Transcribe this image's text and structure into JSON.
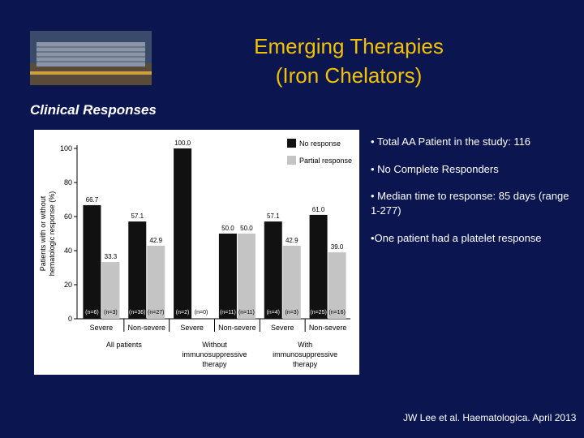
{
  "slide": {
    "title": [
      "Emerging Therapies",
      "(Iron Chelators)"
    ],
    "subtitle": "Clinical Responses",
    "bullets": [
      "• Total AA Patient in the study: 116",
      "• No Complete Responders",
      "• Median time to response: 85 days (range 1-277)",
      "•One patient had a platelet response"
    ],
    "citation": "JW Lee et al. Haematologica. April 2013"
  },
  "chart_data": {
    "type": "bar",
    "y_label": [
      "Patients with or without",
      "hematologic response (%)"
    ],
    "categories": [
      "Severe",
      "Non-severe",
      "Severe",
      "Non-severe",
      "Severe",
      "Non-severe"
    ],
    "group_labels": [
      [
        "All patients"
      ],
      [
        "Without",
        "immunosuppressive",
        "therapy"
      ],
      [
        "With",
        "immunosuppressive",
        "therapy"
      ]
    ],
    "series": [
      {
        "name": "No response",
        "color": "#111111",
        "values": [
          66.7,
          57.1,
          100,
          50,
          57.1,
          61
        ],
        "value_labels": [
          "66.7",
          "57.1",
          "100.0",
          "50.0",
          "57.1",
          "61.0"
        ],
        "n_labels": [
          "(n=6)",
          "(n=36)",
          "(n=2)",
          "(n=11)",
          "(n=4)",
          "(n=25)"
        ]
      },
      {
        "name": "Partial response",
        "color": "#c4c4c4",
        "values": [
          33.3,
          42.9,
          0,
          50,
          42.9,
          39
        ],
        "value_labels": [
          "33.3",
          "42.9",
          null,
          "50.0",
          "42.9",
          "39.0"
        ],
        "n_labels": [
          "(n=3)",
          "(n=27)",
          "(n=0)",
          "(n=11)",
          "(n=3)",
          "(n=16)"
        ]
      }
    ],
    "ylim": [
      0,
      100
    ],
    "yticks": [
      0,
      20,
      40,
      60,
      80,
      100
    ],
    "legend": "upper right"
  }
}
